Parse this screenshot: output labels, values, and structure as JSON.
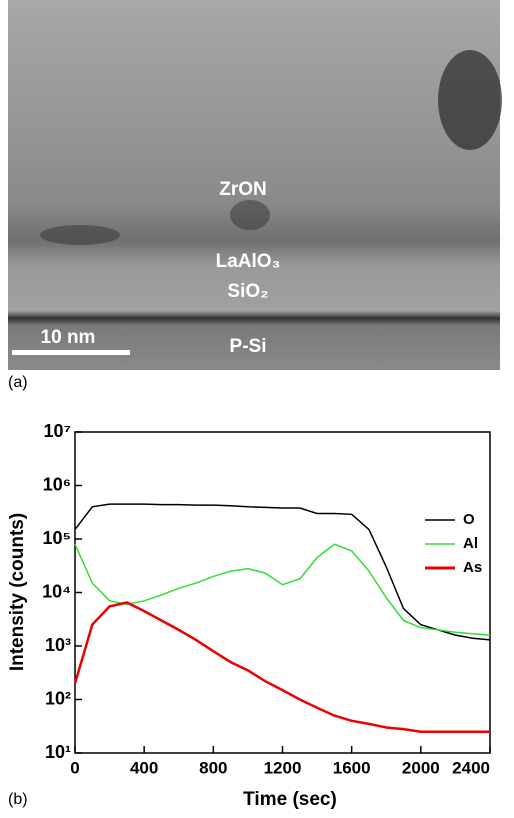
{
  "panel_a": {
    "panel_label": "(a)",
    "layers": [
      "ZrON",
      "LaAlO₃",
      "SiO₂",
      "P-Si"
    ],
    "scale_bar": "10 nm"
  },
  "chart_data": {
    "type": "line",
    "panel_label": "(b)",
    "x_label": "Time (sec)",
    "y_label": "Intensity (counts)",
    "x": [
      0,
      100,
      200,
      300,
      400,
      500,
      600,
      700,
      800,
      900,
      1000,
      1100,
      1200,
      1300,
      1400,
      1500,
      1600,
      1700,
      1800,
      1900,
      2000,
      2100,
      2200,
      2300,
      2400
    ],
    "series": [
      {
        "name": "O",
        "color": "#000000",
        "values": [
          150000,
          400000,
          450000,
          450000,
          450000,
          440000,
          440000,
          430000,
          430000,
          420000,
          400000,
          390000,
          380000,
          380000,
          300000,
          300000,
          290000,
          150000,
          30000,
          5000,
          2500,
          2000,
          1600,
          1400,
          1300
        ]
      },
      {
        "name": "Al",
        "color": "#33dd33",
        "values": [
          80000,
          15000,
          7000,
          6000,
          7000,
          9000,
          12000,
          15000,
          20000,
          25000,
          28000,
          23000,
          14000,
          18000,
          45000,
          80000,
          60000,
          25000,
          8000,
          3000,
          2200,
          2000,
          1800,
          1700,
          1600
        ]
      },
      {
        "name": "As",
        "color": "#ee0000",
        "values": [
          200,
          2500,
          5500,
          6500,
          4500,
          3000,
          2000,
          1300,
          800,
          500,
          350,
          220,
          150,
          100,
          70,
          50,
          40,
          35,
          30,
          28,
          25,
          25,
          25,
          25,
          25
        ]
      }
    ],
    "xlim": [
      0,
      2400
    ],
    "xticks": [
      0,
      400,
      800,
      1200,
      1600,
      2000,
      2400
    ],
    "ylim": [
      10,
      10000000
    ],
    "log_y": true,
    "yticks": [
      {
        "value": 10,
        "label": "10¹"
      },
      {
        "value": 100,
        "label": "10²"
      },
      {
        "value": 1000,
        "label": "10³"
      },
      {
        "value": 10000,
        "label": "10⁴"
      },
      {
        "value": 100000,
        "label": "10⁵"
      },
      {
        "value": 1000000,
        "label": "10⁶"
      },
      {
        "value": 10000000,
        "label": "10⁷"
      }
    ],
    "legend": "upper right"
  }
}
